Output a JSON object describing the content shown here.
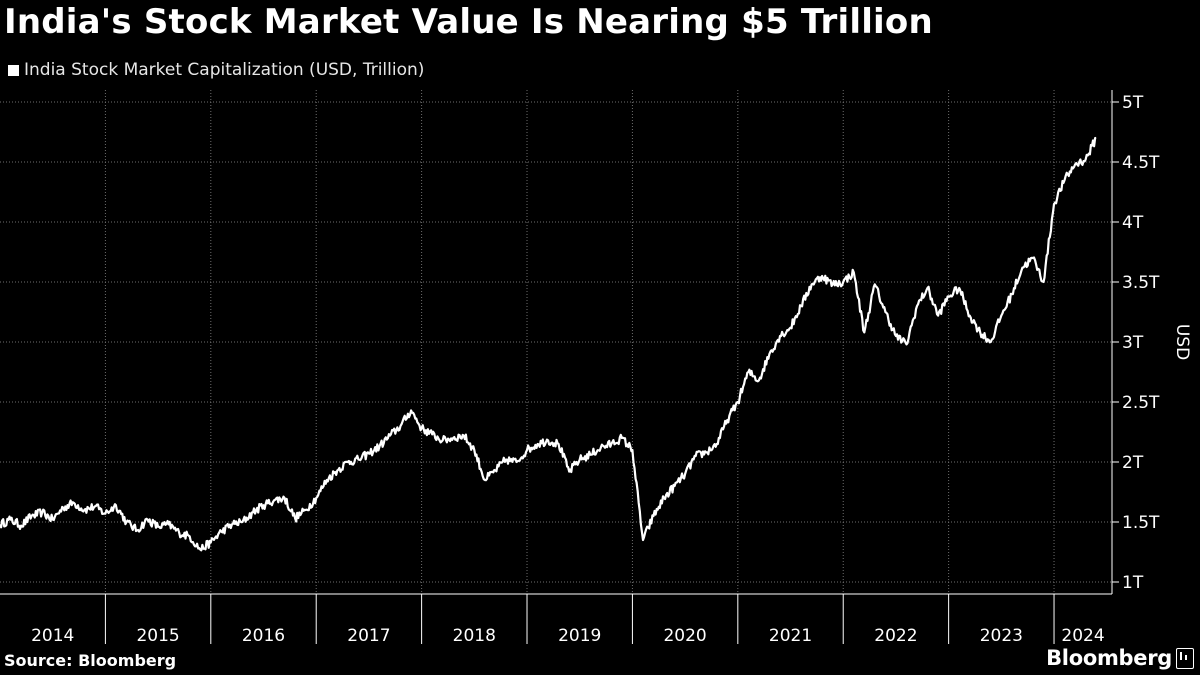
{
  "header": {
    "title": "India's Stock Market Value Is Nearing $5 Trillion"
  },
  "legend": {
    "label": "India Stock Market Capitalization (USD, Trillion)"
  },
  "footer": {
    "source": "Source: Bloomberg",
    "brand": "Bloomberg"
  },
  "colors": {
    "background": "#000000",
    "line": "#ffffff",
    "grid": "#6e6e6e"
  },
  "chart_data": {
    "type": "line",
    "title": "India's Stock Market Value Is Nearing $5 Trillion",
    "xlabel": "",
    "ylabel": "USD",
    "xlim": [
      2014.0,
      2024.55
    ],
    "ylim": [
      0.9,
      5.1
    ],
    "grid": true,
    "legend_position": "top-left",
    "yticks": [
      1,
      1.5,
      2,
      2.5,
      3,
      3.5,
      4,
      4.5,
      5
    ],
    "ytick_labels": [
      "1T",
      "1.5T",
      "2T",
      "2.5T",
      "3T",
      "3.5T",
      "4T",
      "4.5T",
      "5T"
    ],
    "xtick_labels": [
      "2014",
      "2015",
      "2016",
      "2017",
      "2018",
      "2019",
      "2020",
      "2021",
      "2022",
      "2023",
      "2024"
    ],
    "xtick_positions": [
      2014,
      2015,
      2016,
      2017,
      2018,
      2019,
      2020,
      2021,
      2022,
      2023,
      2024
    ],
    "series": [
      {
        "name": "India Stock Market Capitalization (USD, Trillion)",
        "x": [
          2014.0,
          2014.1,
          2014.2,
          2014.3,
          2014.4,
          2014.5,
          2014.6,
          2014.7,
          2014.8,
          2014.9,
          2015.0,
          2015.1,
          2015.2,
          2015.3,
          2015.4,
          2015.5,
          2015.6,
          2015.7,
          2015.8,
          2015.9,
          2016.0,
          2016.1,
          2016.2,
          2016.3,
          2016.4,
          2016.5,
          2016.6,
          2016.7,
          2016.8,
          2016.9,
          2017.0,
          2017.1,
          2017.2,
          2017.3,
          2017.4,
          2017.5,
          2017.6,
          2017.7,
          2017.8,
          2017.9,
          2018.0,
          2018.1,
          2018.2,
          2018.3,
          2018.4,
          2018.5,
          2018.6,
          2018.7,
          2018.8,
          2018.9,
          2019.0,
          2019.1,
          2019.2,
          2019.3,
          2019.4,
          2019.5,
          2019.6,
          2019.7,
          2019.8,
          2019.9,
          2020.0,
          2020.1,
          2020.2,
          2020.3,
          2020.4,
          2020.5,
          2020.6,
          2020.7,
          2020.8,
          2020.9,
          2021.0,
          2021.1,
          2021.2,
          2021.3,
          2021.4,
          2021.5,
          2021.6,
          2021.7,
          2021.8,
          2021.9,
          2022.0,
          2022.1,
          2022.2,
          2022.3,
          2022.4,
          2022.5,
          2022.6,
          2022.7,
          2022.8,
          2022.9,
          2023.0,
          2023.1,
          2023.2,
          2023.3,
          2023.4,
          2023.5,
          2023.6,
          2023.7,
          2023.8,
          2023.9,
          2024.0,
          2024.1,
          2024.2,
          2024.3,
          2024.4
        ],
        "values": [
          1.48,
          1.52,
          1.47,
          1.55,
          1.58,
          1.52,
          1.62,
          1.66,
          1.6,
          1.63,
          1.57,
          1.64,
          1.5,
          1.43,
          1.52,
          1.46,
          1.48,
          1.41,
          1.38,
          1.27,
          1.33,
          1.42,
          1.48,
          1.5,
          1.58,
          1.64,
          1.68,
          1.7,
          1.53,
          1.6,
          1.7,
          1.85,
          1.93,
          2.0,
          2.02,
          2.07,
          2.13,
          2.22,
          2.3,
          2.43,
          2.28,
          2.23,
          2.18,
          2.2,
          2.22,
          2.1,
          1.85,
          1.93,
          2.02,
          2.0,
          2.1,
          2.15,
          2.18,
          2.15,
          1.92,
          2.02,
          2.06,
          2.12,
          2.15,
          2.2,
          2.1,
          1.35,
          1.55,
          1.7,
          1.8,
          1.9,
          2.05,
          2.08,
          2.15,
          2.35,
          2.5,
          2.75,
          2.68,
          2.9,
          3.05,
          3.12,
          3.3,
          3.48,
          3.55,
          3.48,
          3.5,
          3.58,
          3.08,
          3.48,
          3.25,
          3.05,
          2.98,
          3.3,
          3.45,
          3.22,
          3.38,
          3.45,
          3.22,
          3.08,
          3.0,
          3.22,
          3.4,
          3.62,
          3.7,
          3.5,
          4.15,
          4.35,
          4.48,
          4.52,
          4.7
        ]
      }
    ]
  }
}
